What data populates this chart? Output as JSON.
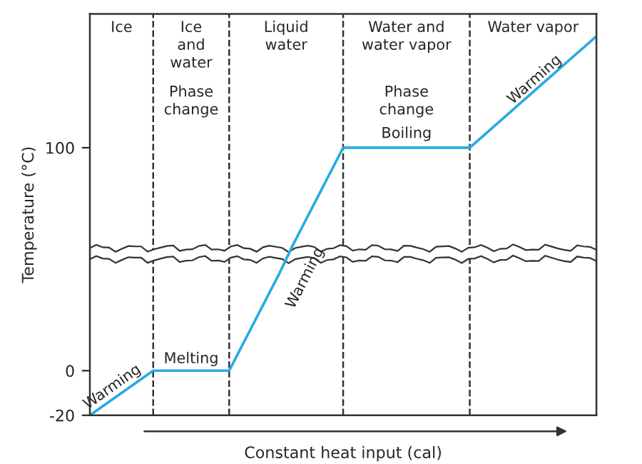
{
  "chart_data": {
    "type": "line",
    "xlabel": "Constant heat input (cal)",
    "ylabel": "Temperature (°C)",
    "categories": [
      null,
      null,
      null,
      null,
      null,
      null,
      null,
      null,
      null,
      null,
      null,
      null,
      null,
      null,
      null,
      null,
      null,
      null,
      null,
      null,
      null,
      null,
      null,
      null,
      null,
      null,
      null,
      null,
      null,
      null,
      null,
      null,
      null,
      null,
      null,
      null,
      null,
      null,
      null,
      null,
      null
    ],
    "series": [
      {
        "color": "#29abe2",
        "values": [
          -20,
          -16,
          -12,
          -8,
          -4,
          0,
          0,
          0,
          0,
          0,
          0,
          0,
          11,
          22,
          33,
          44,
          56,
          67,
          78,
          89,
          100,
          100,
          100,
          100,
          100,
          100,
          100,
          100,
          100,
          100,
          100,
          105,
          110,
          115,
          120,
          125,
          130,
          135,
          140,
          145,
          150
        ]
      }
    ],
    "ylim": [
      -20,
      160
    ],
    "yticks": [
      -20,
      0,
      100
    ],
    "tick_labels": "y",
    "grid": "x",
    "legend": false,
    "marker": "none",
    "line_style": "solid",
    "annotations": [
      "Ice",
      "Ice\nand\nwater",
      "Liquid\nwater",
      "Water and\nwater vapor",
      "Water vapor",
      "Phase\nchange",
      "Phase\nchange",
      "Boiling",
      "Melting",
      "Warming",
      "Warming",
      "Warming"
    ]
  }
}
